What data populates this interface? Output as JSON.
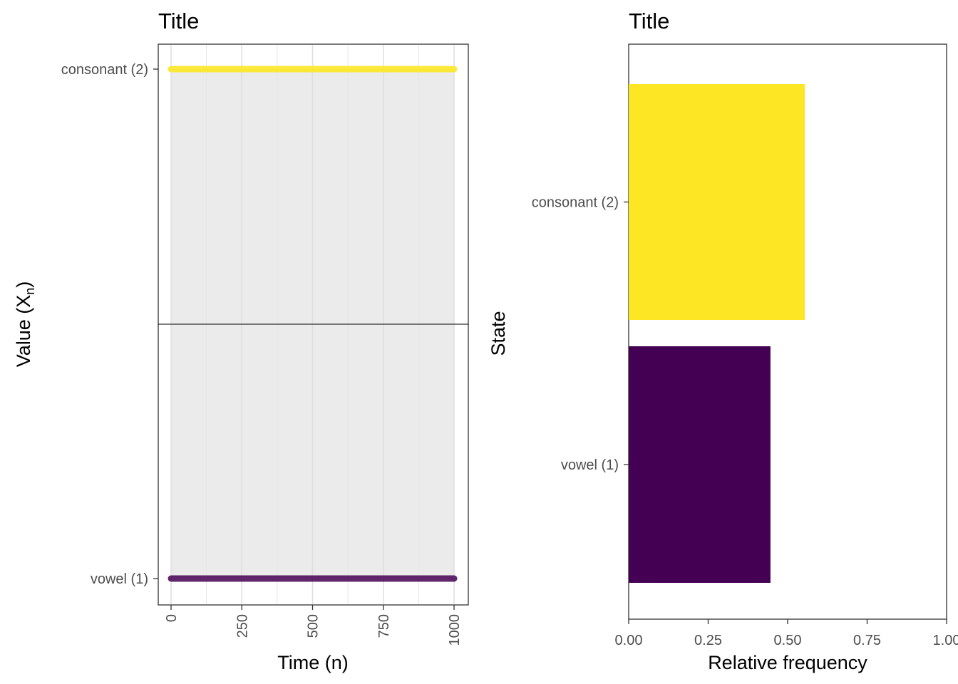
{
  "chart_data": [
    {
      "type": "line",
      "title": "Title",
      "xlabel": "Time (n)",
      "ylabel": "Value (X",
      "ylabel_sub": "n",
      "ylabel_close": ")",
      "xlim": [
        0,
        1000
      ],
      "xticks": [
        "0",
        "250",
        "500",
        "750",
        "1000"
      ],
      "xtick_values": [
        0,
        250,
        500,
        750,
        1000
      ],
      "categories": [
        "vowel (1)",
        "consonant (2)"
      ],
      "series": [
        {
          "name": "consonant (2)",
          "x_range": [
            0,
            1000
          ],
          "color": "#FDE725"
        },
        {
          "name": "vowel (1)",
          "x_range": [
            0,
            1000
          ],
          "color": "#440154"
        }
      ],
      "grid": true
    },
    {
      "type": "bar",
      "orientation": "horizontal",
      "title": "Title",
      "xlabel": "Relative frequency",
      "ylabel": "State",
      "xlim": [
        0,
        1
      ],
      "xticks": [
        "0.00",
        "0.25",
        "0.50",
        "0.75",
        "1.00"
      ],
      "xtick_values": [
        0,
        0.25,
        0.5,
        0.75,
        1
      ],
      "categories": [
        "consonant (2)",
        "vowel (1)"
      ],
      "values": [
        0.554,
        0.446
      ],
      "colors": [
        "#FDE725",
        "#440154"
      ],
      "grid": false
    }
  ]
}
